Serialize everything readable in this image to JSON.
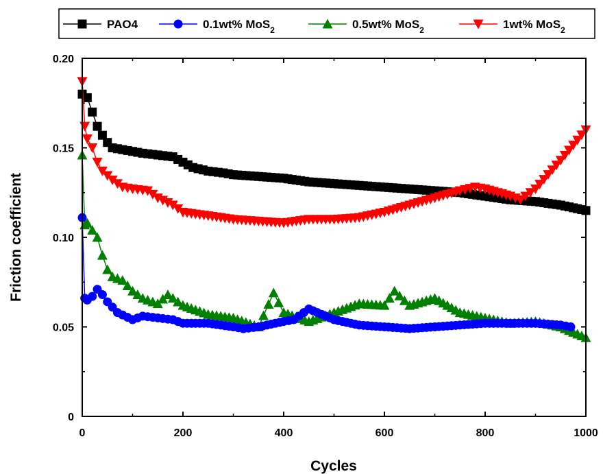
{
  "chart_data": {
    "type": "line",
    "xlabel": "Cycles",
    "ylabel": "Friction coefficient",
    "xlim": [
      0,
      1000
    ],
    "ylim": [
      0,
      0.2
    ],
    "x_ticks": [
      0,
      200,
      400,
      600,
      800,
      1000
    ],
    "y_ticks": [
      0,
      0.05,
      0.1,
      0.15,
      0.2
    ],
    "x_tick_labels": [
      "0",
      "200",
      "400",
      "600",
      "800",
      "1000"
    ],
    "y_tick_labels": [
      "0",
      "0.05",
      "0.10",
      "0.15",
      "0.20"
    ],
    "grid": false,
    "legend_position": "top",
    "series": [
      {
        "name": "PAO4",
        "sub": "",
        "color": "#000000",
        "marker": "square",
        "x": [
          0,
          10,
          20,
          30,
          40,
          50,
          60,
          80,
          100,
          120,
          150,
          180,
          200,
          220,
          250,
          280,
          300,
          350,
          400,
          450,
          500,
          550,
          600,
          650,
          700,
          750,
          800,
          850,
          900,
          950,
          1000
        ],
        "y": [
          0.18,
          0.178,
          0.17,
          0.162,
          0.157,
          0.153,
          0.15,
          0.149,
          0.148,
          0.147,
          0.146,
          0.145,
          0.142,
          0.139,
          0.137,
          0.136,
          0.135,
          0.134,
          0.133,
          0.131,
          0.13,
          0.129,
          0.128,
          0.127,
          0.126,
          0.125,
          0.123,
          0.121,
          0.12,
          0.118,
          0.115
        ]
      },
      {
        "name": "0.1wt% MoS",
        "sub": "2",
        "color": "#0000ff",
        "marker": "circle",
        "x": [
          0,
          5,
          10,
          20,
          30,
          40,
          50,
          70,
          100,
          120,
          150,
          180,
          200,
          250,
          300,
          320,
          350,
          400,
          420,
          450,
          500,
          550,
          600,
          650,
          700,
          750,
          800,
          850,
          900,
          950,
          970
        ],
        "y": [
          0.111,
          0.066,
          0.065,
          0.067,
          0.071,
          0.068,
          0.064,
          0.058,
          0.054,
          0.056,
          0.055,
          0.054,
          0.052,
          0.052,
          0.05,
          0.049,
          0.05,
          0.053,
          0.054,
          0.06,
          0.054,
          0.051,
          0.05,
          0.049,
          0.05,
          0.051,
          0.052,
          0.052,
          0.052,
          0.051,
          0.05
        ]
      },
      {
        "name": "0.5wt% MoS",
        "sub": "2",
        "color": "#008000",
        "marker": "triangle-up",
        "x": [
          0,
          5,
          10,
          20,
          30,
          40,
          50,
          60,
          80,
          100,
          120,
          150,
          170,
          200,
          250,
          300,
          350,
          380,
          400,
          450,
          500,
          550,
          600,
          620,
          650,
          700,
          750,
          800,
          850,
          900,
          950,
          1000
        ],
        "y": [
          0.146,
          0.107,
          0.108,
          0.104,
          0.1,
          0.09,
          0.082,
          0.078,
          0.076,
          0.07,
          0.066,
          0.063,
          0.068,
          0.062,
          0.057,
          0.055,
          0.05,
          0.069,
          0.058,
          0.053,
          0.058,
          0.063,
          0.062,
          0.07,
          0.062,
          0.066,
          0.058,
          0.055,
          0.052,
          0.053,
          0.05,
          0.044
        ]
      },
      {
        "name": "1wt% MoS",
        "sub": "2",
        "color": "#ff0000",
        "marker": "triangle-down",
        "x": [
          0,
          5,
          10,
          20,
          30,
          40,
          60,
          80,
          100,
          130,
          150,
          180,
          200,
          250,
          300,
          350,
          400,
          450,
          500,
          550,
          600,
          650,
          700,
          750,
          780,
          800,
          850,
          870,
          900,
          950,
          1000
        ],
        "y": [
          0.187,
          0.162,
          0.155,
          0.15,
          0.142,
          0.137,
          0.132,
          0.128,
          0.127,
          0.126,
          0.122,
          0.118,
          0.114,
          0.112,
          0.11,
          0.109,
          0.108,
          0.11,
          0.11,
          0.111,
          0.114,
          0.118,
          0.122,
          0.126,
          0.128,
          0.127,
          0.123,
          0.121,
          0.127,
          0.143,
          0.16
        ]
      }
    ]
  }
}
